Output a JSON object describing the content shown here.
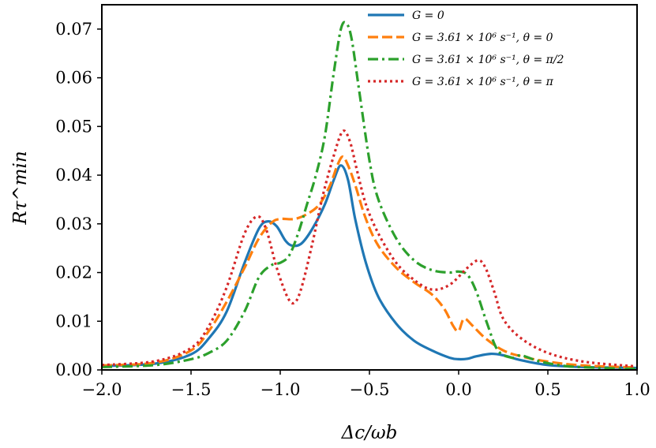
{
  "chart_data": {
    "type": "line",
    "title": "",
    "xlabel": "Δc/ωb",
    "ylabel": "Rτ^min",
    "xlim": [
      -2.0,
      1.0
    ],
    "ylim": [
      0.0,
      0.075
    ],
    "xticks": [
      -2.0,
      -1.5,
      -1.0,
      -0.5,
      0.0,
      0.5,
      1.0
    ],
    "xtick_labels": [
      "−2.0",
      "−1.5",
      "−1.0",
      "−0.5",
      "0.0",
      "0.5",
      "1.0"
    ],
    "yticks": [
      0.0,
      0.01,
      0.02,
      0.03,
      0.04,
      0.05,
      0.06,
      0.07
    ],
    "ytick_labels": [
      "0.00",
      "0.01",
      "0.02",
      "0.03",
      "0.04",
      "0.05",
      "0.06",
      "0.07"
    ],
    "grid": false,
    "legend_position": "top-right",
    "series": [
      {
        "name": "G = 0",
        "color": "#1f77b4",
        "dash": "solid",
        "points": [
          [
            -2.0,
            0.0008
          ],
          [
            -1.7,
            0.0013
          ],
          [
            -1.5,
            0.0032
          ],
          [
            -1.4,
            0.0065
          ],
          [
            -1.3,
            0.012
          ],
          [
            -1.2,
            0.022
          ],
          [
            -1.12,
            0.029
          ],
          [
            -1.07,
            0.0305
          ],
          [
            -1.02,
            0.0295
          ],
          [
            -0.97,
            0.0265
          ],
          [
            -0.93,
            0.0255
          ],
          [
            -0.88,
            0.026
          ],
          [
            -0.82,
            0.029
          ],
          [
            -0.75,
            0.034
          ],
          [
            -0.7,
            0.039
          ],
          [
            -0.66,
            0.042
          ],
          [
            -0.62,
            0.039
          ],
          [
            -0.58,
            0.031
          ],
          [
            -0.52,
            0.022
          ],
          [
            -0.45,
            0.015
          ],
          [
            -0.35,
            0.0095
          ],
          [
            -0.25,
            0.006
          ],
          [
            -0.15,
            0.004
          ],
          [
            -0.05,
            0.0025
          ],
          [
            0.0,
            0.0022
          ],
          [
            0.05,
            0.0023
          ],
          [
            0.1,
            0.0028
          ],
          [
            0.18,
            0.0033
          ],
          [
            0.25,
            0.003
          ],
          [
            0.35,
            0.002
          ],
          [
            0.5,
            0.001
          ],
          [
            0.7,
            0.0006
          ],
          [
            1.0,
            0.0004
          ]
        ]
      },
      {
        "name": "G = 3.61 × 10⁶ s⁻¹, θ = 0",
        "color": "#ff7f0e",
        "dash": "dashed",
        "points": [
          [
            -2.0,
            0.0009
          ],
          [
            -1.7,
            0.0015
          ],
          [
            -1.5,
            0.004
          ],
          [
            -1.4,
            0.008
          ],
          [
            -1.3,
            0.014
          ],
          [
            -1.2,
            0.021
          ],
          [
            -1.12,
            0.027
          ],
          [
            -1.05,
            0.0302
          ],
          [
            -1.0,
            0.031
          ],
          [
            -0.92,
            0.031
          ],
          [
            -0.85,
            0.032
          ],
          [
            -0.78,
            0.034
          ],
          [
            -0.72,
            0.038
          ],
          [
            -0.68,
            0.042
          ],
          [
            -0.65,
            0.0438
          ],
          [
            -0.62,
            0.042
          ],
          [
            -0.58,
            0.038
          ],
          [
            -0.52,
            0.031
          ],
          [
            -0.45,
            0.0255
          ],
          [
            -0.35,
            0.021
          ],
          [
            -0.25,
            0.018
          ],
          [
            -0.15,
            0.0155
          ],
          [
            -0.08,
            0.0125
          ],
          [
            -0.03,
            0.009
          ],
          [
            0.0,
            0.008
          ],
          [
            0.03,
            0.0105
          ],
          [
            0.08,
            0.009
          ],
          [
            0.15,
            0.0065
          ],
          [
            0.25,
            0.004
          ],
          [
            0.35,
            0.0028
          ],
          [
            0.5,
            0.0017
          ],
          [
            0.7,
            0.0009
          ],
          [
            1.0,
            0.0005
          ]
        ]
      },
      {
        "name": "G = 3.61 × 10⁶ s⁻¹, θ = π/2",
        "color": "#2ca02c",
        "dash": "dashdot",
        "points": [
          [
            -2.0,
            0.0006
          ],
          [
            -1.7,
            0.001
          ],
          [
            -1.5,
            0.0022
          ],
          [
            -1.4,
            0.0035
          ],
          [
            -1.3,
            0.006
          ],
          [
            -1.2,
            0.012
          ],
          [
            -1.12,
            0.019
          ],
          [
            -1.05,
            0.0215
          ],
          [
            -1.0,
            0.022
          ],
          [
            -0.95,
            0.0235
          ],
          [
            -0.9,
            0.028
          ],
          [
            -0.85,
            0.034
          ],
          [
            -0.8,
            0.04
          ],
          [
            -0.75,
            0.048
          ],
          [
            -0.7,
            0.061
          ],
          [
            -0.66,
            0.07
          ],
          [
            -0.63,
            0.0712
          ],
          [
            -0.6,
            0.068
          ],
          [
            -0.56,
            0.058
          ],
          [
            -0.5,
            0.043
          ],
          [
            -0.45,
            0.035
          ],
          [
            -0.35,
            0.027
          ],
          [
            -0.25,
            0.0225
          ],
          [
            -0.15,
            0.0205
          ],
          [
            -0.05,
            0.02
          ],
          [
            0.0,
            0.0202
          ],
          [
            0.05,
            0.0195
          ],
          [
            0.1,
            0.016
          ],
          [
            0.16,
            0.0095
          ],
          [
            0.22,
            0.004
          ],
          [
            0.3,
            0.0025
          ],
          [
            0.35,
            0.003
          ],
          [
            0.45,
            0.0018
          ],
          [
            0.6,
            0.0008
          ],
          [
            0.8,
            0.0004
          ],
          [
            1.0,
            0.0002
          ]
        ]
      },
      {
        "name": "G = 3.61 × 10⁶ s⁻¹, θ = π",
        "color": "#d62728",
        "dash": "dotted",
        "points": [
          [
            -2.0,
            0.001
          ],
          [
            -1.7,
            0.0018
          ],
          [
            -1.5,
            0.0045
          ],
          [
            -1.4,
            0.009
          ],
          [
            -1.3,
            0.017
          ],
          [
            -1.2,
            0.028
          ],
          [
            -1.13,
            0.0315
          ],
          [
            -1.08,
            0.029
          ],
          [
            -1.02,
            0.021
          ],
          [
            -0.96,
            0.015
          ],
          [
            -0.92,
            0.0138
          ],
          [
            -0.88,
            0.017
          ],
          [
            -0.82,
            0.026
          ],
          [
            -0.76,
            0.036
          ],
          [
            -0.7,
            0.044
          ],
          [
            -0.65,
            0.049
          ],
          [
            -0.61,
            0.047
          ],
          [
            -0.57,
            0.041
          ],
          [
            -0.52,
            0.034
          ],
          [
            -0.45,
            0.028
          ],
          [
            -0.35,
            0.022
          ],
          [
            -0.25,
            0.0185
          ],
          [
            -0.15,
            0.0165
          ],
          [
            -0.05,
            0.0175
          ],
          [
            0.05,
            0.021
          ],
          [
            0.11,
            0.0225
          ],
          [
            0.15,
            0.021
          ],
          [
            0.2,
            0.016
          ],
          [
            0.25,
            0.0105
          ],
          [
            0.35,
            0.0065
          ],
          [
            0.5,
            0.0035
          ],
          [
            0.7,
            0.0017
          ],
          [
            1.0,
            0.0007
          ]
        ]
      }
    ]
  }
}
